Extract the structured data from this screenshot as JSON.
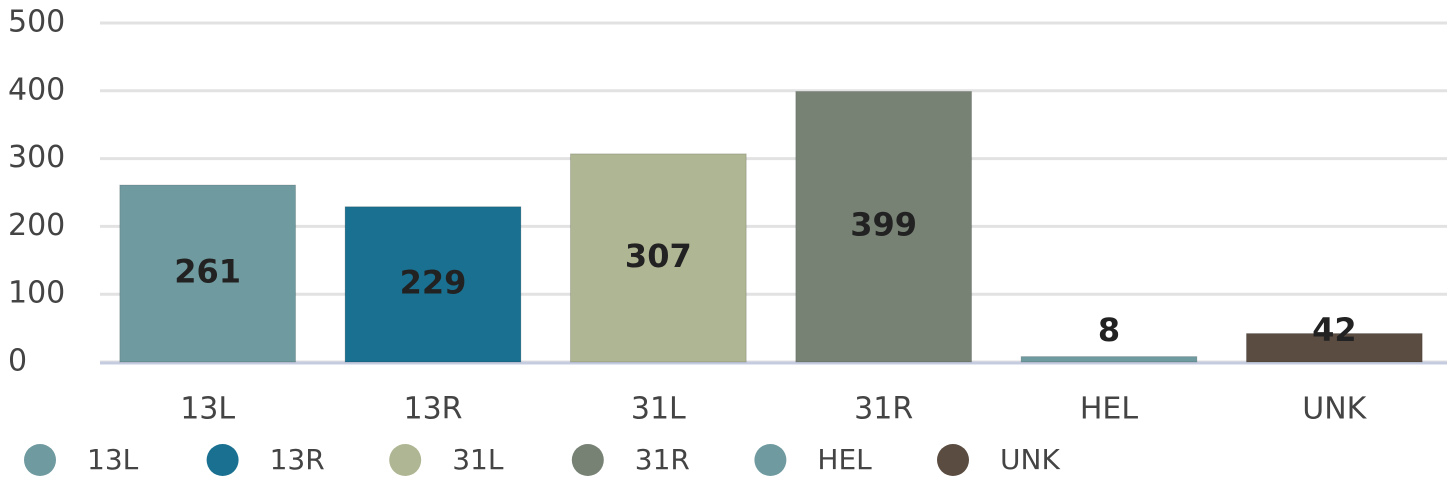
{
  "chart_data": {
    "type": "bar",
    "categories": [
      "13L",
      "13R",
      "31L",
      "31R",
      "HEL",
      "UNK"
    ],
    "values": [
      261,
      229,
      307,
      399,
      8,
      42
    ],
    "colors": [
      "#6f9ba0",
      "#1a7090",
      "#afb693",
      "#778275",
      "#6f9ba0",
      "#5a4c40"
    ],
    "ylim": [
      0,
      500
    ],
    "yticks": [
      0,
      100,
      200,
      300,
      400,
      500
    ],
    "grid": true,
    "legend": "bottom"
  }
}
